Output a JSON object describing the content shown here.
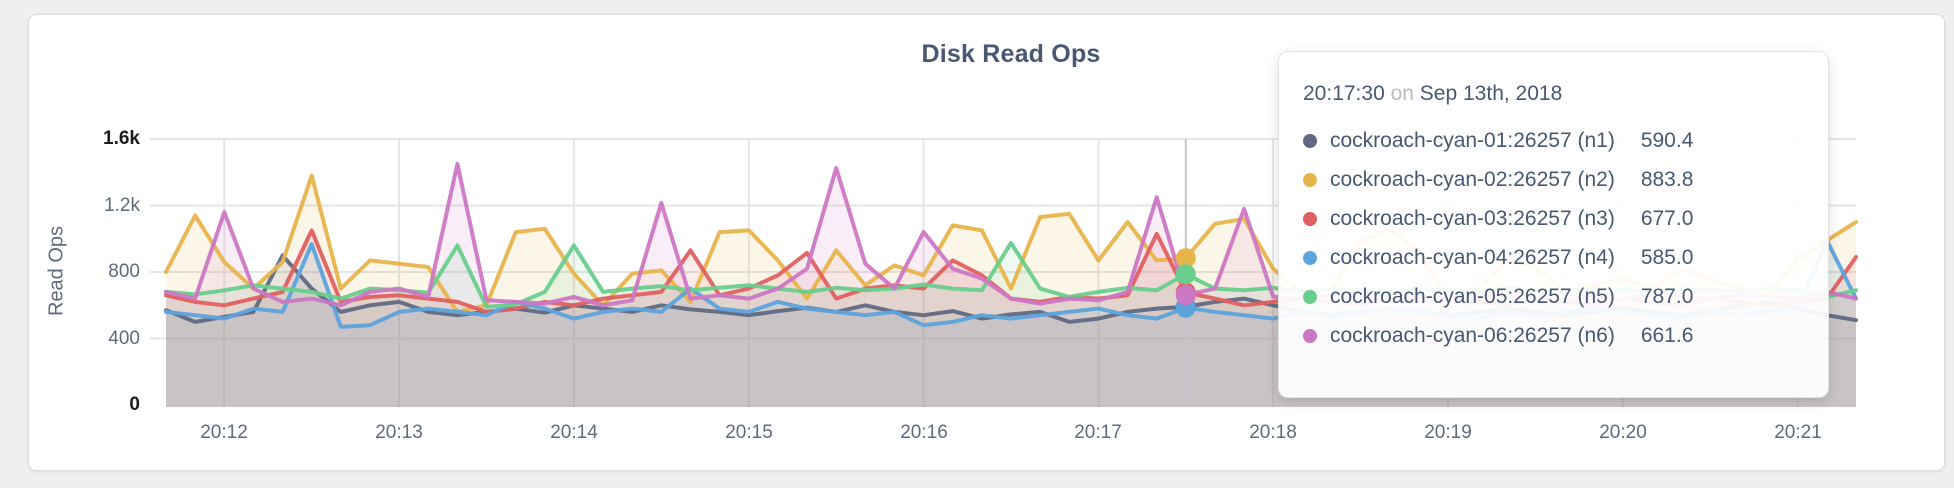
{
  "title": "Disk Read Ops",
  "y_axis": {
    "label": "Read Ops",
    "ticks": [
      {
        "label": "1.6k",
        "value": 1600,
        "emphasized": true
      },
      {
        "label": "1.2k",
        "value": 1200,
        "emphasized": false
      },
      {
        "label": "800",
        "value": 800,
        "emphasized": false
      },
      {
        "label": "400",
        "value": 400,
        "emphasized": false
      },
      {
        "label": "0",
        "value": 0,
        "emphasized": true
      }
    ]
  },
  "x_axis": {
    "ticks": [
      {
        "label": "20:12",
        "index": 2
      },
      {
        "label": "20:13",
        "index": 8
      },
      {
        "label": "20:14",
        "index": 14
      },
      {
        "label": "20:15",
        "index": 20
      },
      {
        "label": "20:16",
        "index": 26
      },
      {
        "label": "20:17",
        "index": 32
      },
      {
        "label": "20:18",
        "index": 38
      },
      {
        "label": "20:19",
        "index": 44
      },
      {
        "label": "20:20",
        "index": 50
      },
      {
        "label": "20:21",
        "index": 56
      }
    ]
  },
  "hover": {
    "index": 35,
    "time": "20:17:30"
  },
  "tooltip": {
    "time": "20:17:30",
    "connector": "on",
    "date": "Sep 13th, 2018",
    "rows": [
      {
        "series": "n1",
        "name": "cockroach-cyan-01:26257 (n1)",
        "value": "590.4"
      },
      {
        "series": "n2",
        "name": "cockroach-cyan-02:26257 (n2)",
        "value": "883.8"
      },
      {
        "series": "n3",
        "name": "cockroach-cyan-03:26257 (n3)",
        "value": "677.0"
      },
      {
        "series": "n4",
        "name": "cockroach-cyan-04:26257 (n4)",
        "value": "585.0"
      },
      {
        "series": "n5",
        "name": "cockroach-cyan-05:26257 (n5)",
        "value": "787.0"
      },
      {
        "series": "n6",
        "name": "cockroach-cyan-06:26257 (n6)",
        "value": "661.6"
      }
    ]
  },
  "chart_data": {
    "type": "line",
    "title": "Disk Read Ops",
    "xlabel": "time",
    "ylabel": "Read Ops",
    "ylim": [
      0,
      1600
    ],
    "grid": true,
    "x_start": "20:11:40",
    "x_interval_seconds": 10,
    "fill_opacity": 0.12,
    "series": [
      {
        "short": "n1",
        "name": "cockroach-cyan-01:26257 (n1)",
        "color": "#5f6a82",
        "values": [
          570,
          500,
          530,
          560,
          900,
          700,
          560,
          600,
          620,
          560,
          540,
          560,
          580,
          555,
          600,
          580,
          560,
          600,
          575,
          560,
          540,
          565,
          585,
          560,
          600,
          560,
          540,
          565,
          520,
          545,
          560,
          500,
          520,
          560,
          580,
          590.4,
          620,
          640,
          600,
          560,
          540,
          560,
          580,
          560,
          540,
          555,
          580,
          560,
          540,
          560,
          580,
          560,
          540,
          560,
          600,
          620,
          580,
          540,
          510
        ]
      },
      {
        "short": "n2",
        "name": "cockroach-cyan-02:26257 (n2)",
        "color": "#e8b44c",
        "values": [
          800,
          1140,
          860,
          700,
          860,
          1380,
          700,
          870,
          850,
          830,
          560,
          600,
          1040,
          1060,
          790,
          600,
          790,
          810,
          620,
          1040,
          1050,
          870,
          640,
          930,
          720,
          840,
          780,
          1080,
          1050,
          700,
          1130,
          1150,
          870,
          1100,
          870,
          883.8,
          1090,
          1120,
          820,
          660,
          700,
          980,
          1060,
          920,
          640,
          700,
          870,
          830,
          680,
          720,
          760,
          700,
          820,
          760,
          700,
          660,
          880,
          990,
          1100
        ]
      },
      {
        "short": "n3",
        "name": "cockroach-cyan-03:26257 (n3)",
        "color": "#e06060",
        "values": [
          660,
          620,
          600,
          640,
          680,
          1050,
          620,
          650,
          660,
          640,
          620,
          560,
          580,
          620,
          600,
          640,
          660,
          680,
          930,
          660,
          700,
          780,
          915,
          640,
          700,
          720,
          700,
          870,
          780,
          640,
          620,
          650,
          640,
          660,
          1030,
          677.0,
          640,
          600,
          620,
          640,
          620,
          600,
          640,
          620,
          640,
          620,
          600,
          640,
          620,
          600,
          640,
          620,
          600,
          640,
          620,
          600,
          620,
          640,
          890
        ]
      },
      {
        "short": "n4",
        "name": "cockroach-cyan-04:26257 (n4)",
        "color": "#5da3dc",
        "values": [
          560,
          540,
          520,
          580,
          560,
          968,
          470,
          480,
          560,
          580,
          560,
          540,
          620,
          580,
          520,
          560,
          580,
          560,
          700,
          580,
          560,
          620,
          580,
          560,
          540,
          560,
          480,
          500,
          540,
          520,
          540,
          560,
          580,
          540,
          520,
          585.0,
          560,
          540,
          520,
          560,
          540,
          560,
          580,
          560,
          540,
          520,
          560,
          540,
          560,
          580,
          560,
          540,
          520,
          560,
          540,
          560,
          580,
          990,
          640
        ]
      },
      {
        "short": "n5",
        "name": "cockroach-cyan-05:26257 (n5)",
        "color": "#69ce8c",
        "values": [
          680,
          665,
          690,
          720,
          700,
          680,
          640,
          700,
          690,
          675,
          960,
          590,
          605,
          680,
          960,
          680,
          700,
          715,
          690,
          705,
          720,
          700,
          680,
          705,
          690,
          700,
          725,
          700,
          690,
          975,
          700,
          650,
          680,
          705,
          690,
          787.0,
          700,
          690,
          705,
          680,
          700,
          690,
          680,
          700,
          690,
          680,
          705,
          690,
          680,
          700,
          690,
          680,
          700,
          690,
          680,
          700,
          690,
          650,
          690
        ]
      },
      {
        "short": "n6",
        "name": "cockroach-cyan-06:26257 (n6)",
        "color": "#cc77c4",
        "values": [
          680,
          640,
          1160,
          700,
          620,
          640,
          600,
          680,
          700,
          650,
          1450,
          630,
          620,
          610,
          650,
          600,
          630,
          1215,
          640,
          660,
          640,
          700,
          820,
          1425,
          850,
          700,
          1040,
          820,
          760,
          640,
          610,
          640,
          630,
          680,
          1250,
          661.6,
          700,
          1180,
          650,
          640,
          660,
          680,
          640,
          650,
          640,
          670,
          650,
          640,
          630,
          650,
          640,
          660,
          650,
          640,
          660,
          650,
          640,
          680,
          640
        ]
      }
    ]
  }
}
